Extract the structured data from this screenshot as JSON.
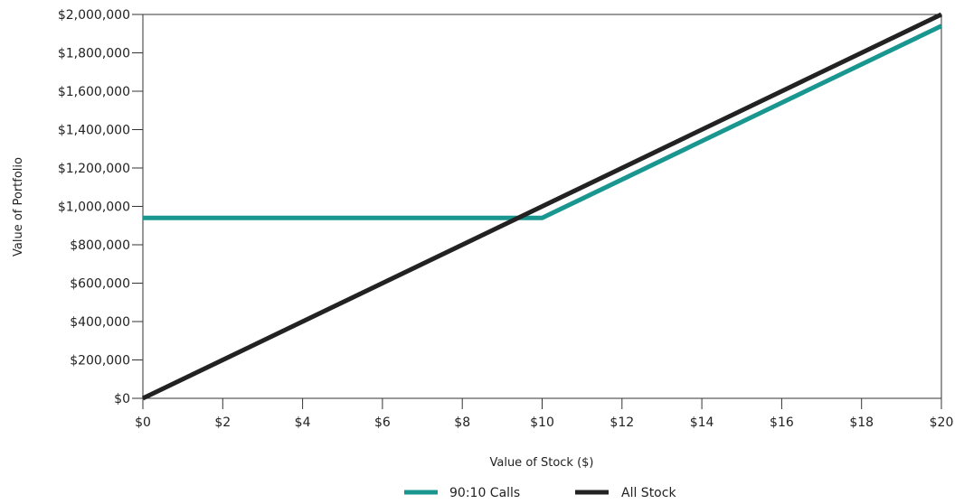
{
  "colors": {
    "calls": "#18968f",
    "stock": "#222222",
    "axis": "#333333"
  },
  "chart_data": {
    "type": "line",
    "title": "",
    "xlabel": "Value of Stock ($)",
    "ylabel": "Value of Portfolio",
    "xlim": [
      0,
      20
    ],
    "ylim": [
      0,
      2000000
    ],
    "x_ticks": [
      0,
      2,
      4,
      6,
      8,
      10,
      12,
      14,
      16,
      18,
      20
    ],
    "x_tick_labels": [
      "$0",
      "$2",
      "$4",
      "$6",
      "$8",
      "$10",
      "$12",
      "$14",
      "$16",
      "$18",
      "$20"
    ],
    "y_ticks": [
      0,
      200000,
      400000,
      600000,
      800000,
      1000000,
      1200000,
      1400000,
      1600000,
      1800000,
      2000000
    ],
    "y_tick_labels": [
      "$0",
      "$200,000",
      "$400,000",
      "$600,000",
      "$800,000",
      "$1,000,000",
      "$1,200,000",
      "$1,400,000",
      "$1,600,000",
      "$1,800,000",
      "$2,000,000"
    ],
    "grid": false,
    "legend_position": "bottom-center",
    "series": [
      {
        "name": "90:10 Calls",
        "color": "#18968f",
        "x": [
          0,
          10,
          20
        ],
        "y": [
          940000,
          940000,
          1940000
        ]
      },
      {
        "name": "All Stock",
        "color": "#222222",
        "x": [
          0,
          20
        ],
        "y": [
          0,
          2000000
        ]
      }
    ]
  }
}
